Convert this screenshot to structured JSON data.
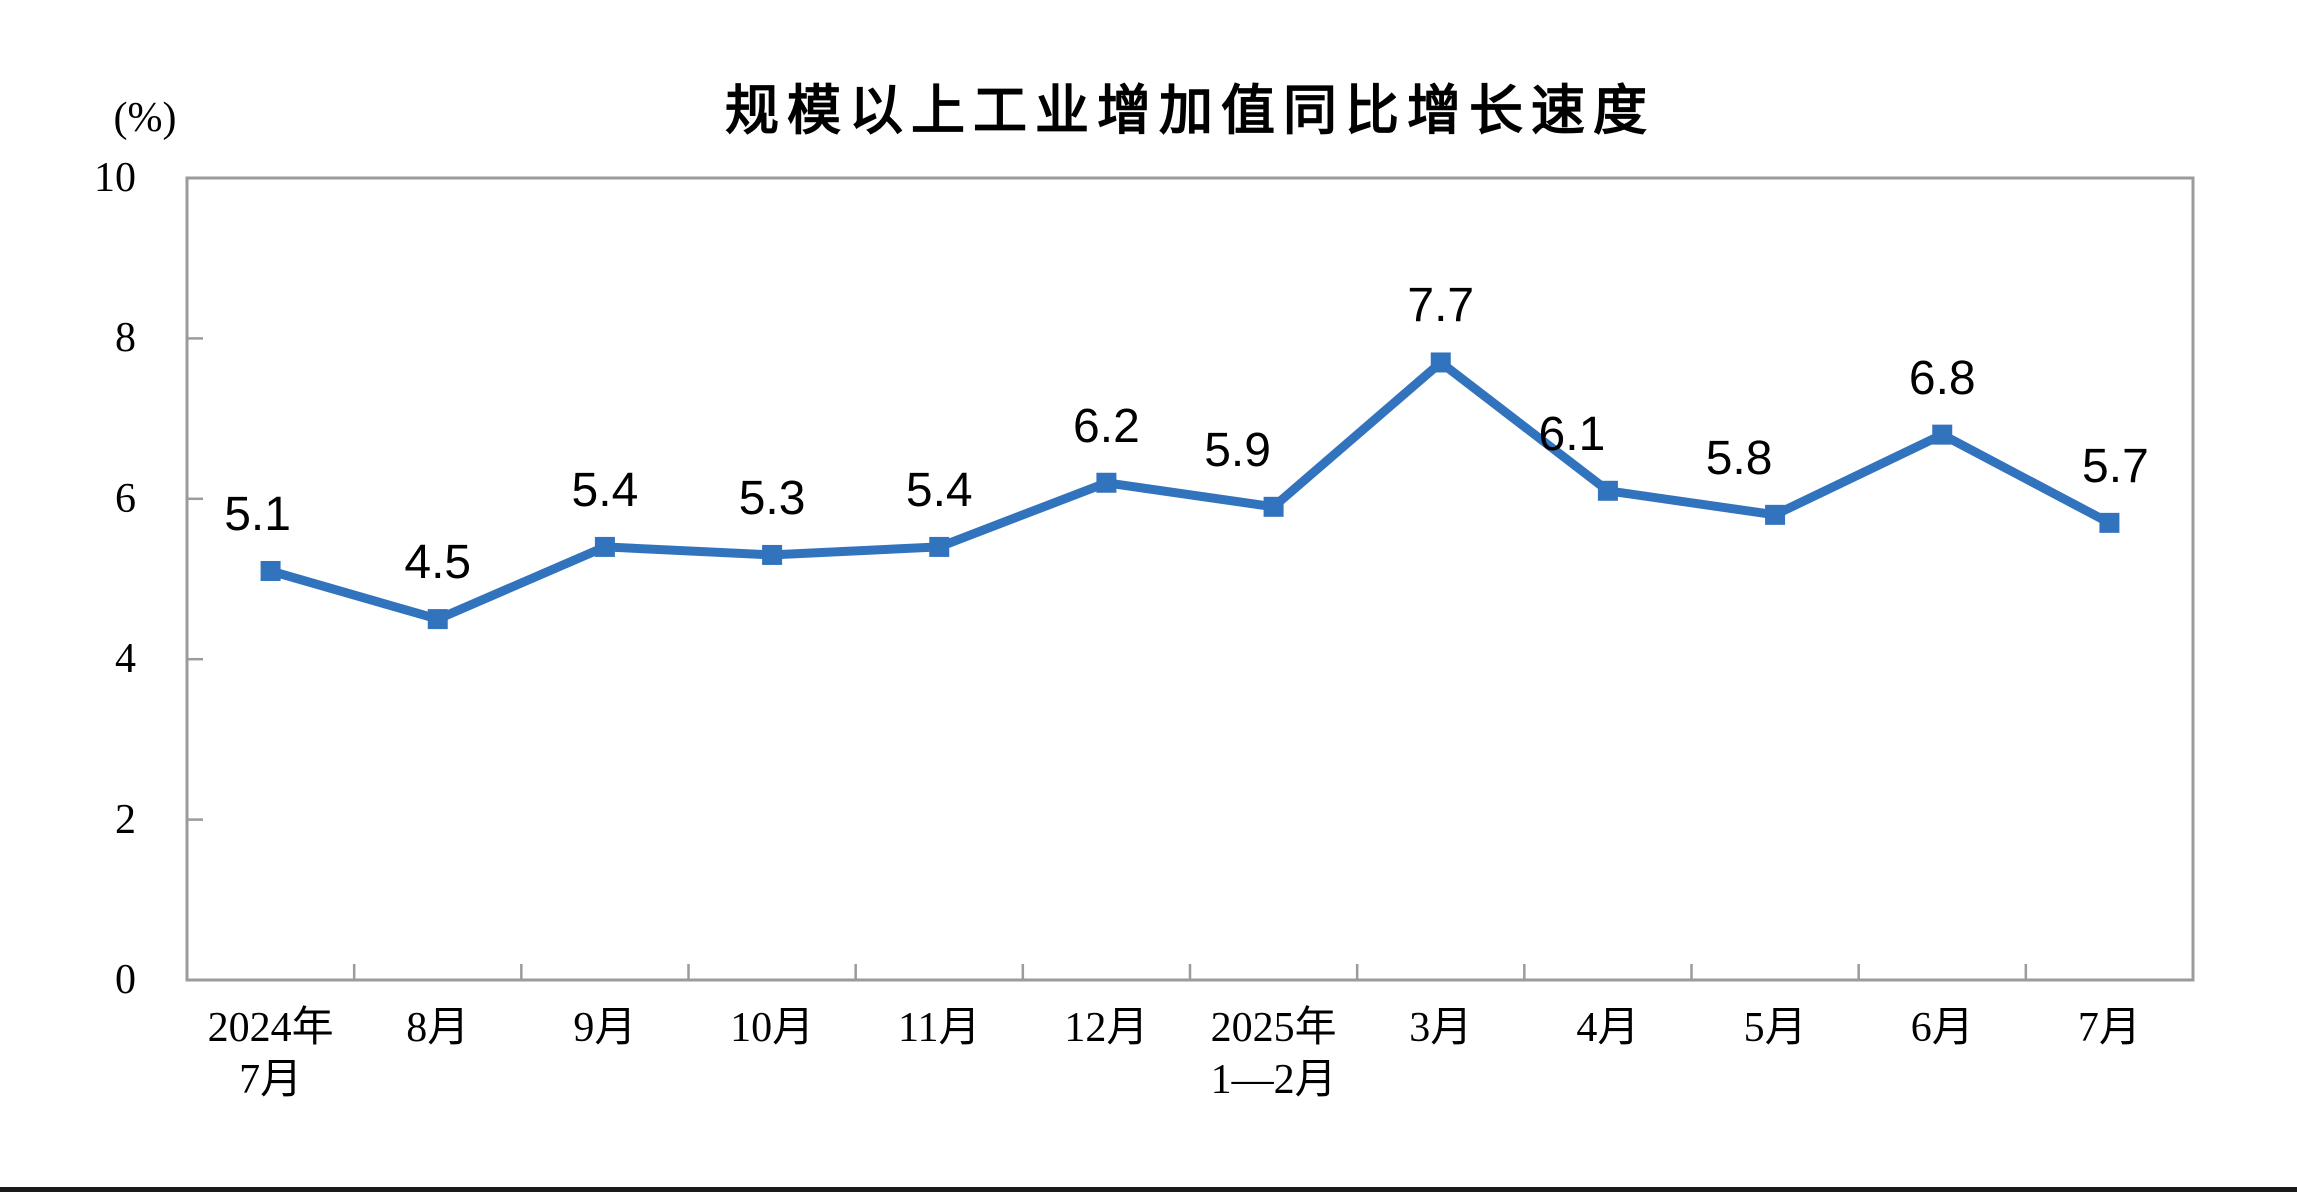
{
  "page": {
    "background": "#FFFFFF",
    "divider_color": "#1A1A1A"
  },
  "chart": {
    "title": "规模以上工业增加值同比增长速度",
    "unit_label": "(%)",
    "colors": {
      "line": "#3273BE",
      "marker": "#3273BE",
      "axis": "#9B9B9B",
      "text": "#000000"
    }
  },
  "chart_data": {
    "type": "line",
    "title": "规模以上工业增加值同比增长速度",
    "ylabel": "(%)",
    "xlabel": "",
    "categories": [
      "2024年\n7月",
      "8月",
      "9月",
      "10月",
      "11月",
      "12月",
      "2025年\n1—2月",
      "3月",
      "4月",
      "5月",
      "6月",
      "7月"
    ],
    "series": [
      {
        "name": "规模以上工业增加值同比增长速度",
        "values": [
          5.1,
          4.5,
          5.4,
          5.3,
          5.4,
          6.2,
          5.9,
          7.7,
          6.1,
          5.8,
          6.8,
          5.7
        ]
      }
    ],
    "data_labels": [
      "5.1",
      "4.5",
      "5.4",
      "5.3",
      "5.4",
      "6.2",
      "5.9",
      "7.7",
      "6.1",
      "5.8",
      "6.8",
      "5.7"
    ],
    "ylim": [
      0,
      10
    ],
    "yticks": [
      0,
      2,
      4,
      6,
      8,
      10
    ],
    "grid": false,
    "legend_position": "none",
    "marker_style": "square"
  }
}
